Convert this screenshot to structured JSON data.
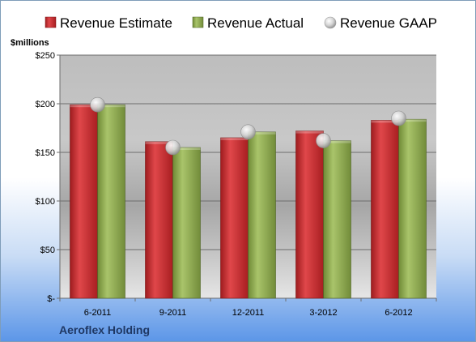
{
  "chart_data": {
    "type": "bar",
    "unit_label": "$millions",
    "company": "Aeroflex Holding",
    "categories": [
      "6-2011",
      "9-2011",
      "12-2011",
      "3-2012",
      "6-2012"
    ],
    "ylim": [
      0,
      250
    ],
    "yticks": [
      {
        "value": 0,
        "label": "$-"
      },
      {
        "value": 50,
        "label": "$50"
      },
      {
        "value": 100,
        "label": "$100"
      },
      {
        "value": 150,
        "label": "$150"
      },
      {
        "value": 200,
        "label": "$200"
      },
      {
        "value": 250,
        "label": "$250"
      }
    ],
    "grid": true,
    "legend_position": "top",
    "series": [
      {
        "name": "Revenue Estimate",
        "kind": "bar",
        "color": "#c0282c",
        "values": [
          199,
          161,
          165,
          172,
          183
        ]
      },
      {
        "name": "Revenue Actual",
        "kind": "bar",
        "color": "#8faa4e",
        "values": [
          199,
          155,
          171,
          162,
          184
        ]
      },
      {
        "name": "Revenue GAAP",
        "kind": "marker",
        "color": "#c8c8c8",
        "values": [
          199,
          155,
          171,
          162,
          185
        ]
      }
    ]
  }
}
